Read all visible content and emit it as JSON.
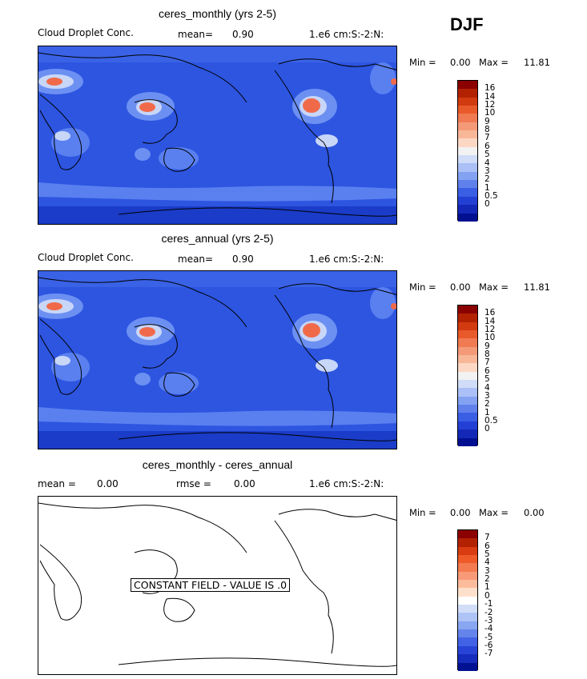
{
  "season": "DJF",
  "panels": [
    {
      "title": "ceres_monthly (yrs 2-5)",
      "variable": "Cloud Droplet Conc.",
      "mean_label": "mean=",
      "mean_value": "0.90",
      "units": "1.e6 cm:S:-2:N:",
      "min_label": "Min =",
      "min_value": "0.00",
      "max_label": "Max =",
      "max_value": "11.81",
      "colorbar_labels": [
        "16",
        "14",
        "12",
        "10",
        "9",
        "8",
        "7",
        "6",
        "5",
        "4",
        "3",
        "2",
        "1",
        "0.5",
        "0"
      ]
    },
    {
      "title": "ceres_annual (yrs 2-5)",
      "variable": "Cloud Droplet Conc.",
      "mean_label": "mean=",
      "mean_value": "0.90",
      "units": "1.e6 cm:S:-2:N:",
      "min_label": "Min =",
      "min_value": "0.00",
      "max_label": "Max =",
      "max_value": "11.81",
      "colorbar_labels": [
        "16",
        "14",
        "12",
        "10",
        "9",
        "8",
        "7",
        "6",
        "5",
        "4",
        "3",
        "2",
        "1",
        "0.5",
        "0"
      ]
    },
    {
      "title": "ceres_monthly - ceres_annual",
      "mean_label": "mean =",
      "mean_value": "0.00",
      "rmse_label": "rmse =",
      "rmse_value": "0.00",
      "units": "1.e6 cm:S:-2:N:",
      "min_label": "Min =",
      "min_value": "0.00",
      "max_label": "Max =",
      "max_value": "0.00",
      "constant_field_text": "CONSTANT FIELD - VALUE IS .0",
      "colorbar_labels": [
        "7",
        "6",
        "5",
        "4",
        "3",
        "2",
        "1",
        "0",
        "-1",
        "-2",
        "-3",
        "-4",
        "-5",
        "-6",
        "-7"
      ]
    }
  ],
  "colors": {
    "ocean": "#2d55e0",
    "ocean_light": "#4f75ee",
    "deep": "#1a3cc8",
    "hot": "#f06a4a",
    "colorbar_top_segments": [
      "#8b0000",
      "#b22200",
      "#d23a10",
      "#e85a2a",
      "#f07a52",
      "#f49a78",
      "#f8b898",
      "#fcd8c4",
      "#f2f2f2",
      "#d0dcf8",
      "#aac0f6",
      "#84a2f2",
      "#6080ec",
      "#3a5ee4",
      "#2440d4",
      "#1428b8",
      "#001090"
    ],
    "colorbar_diff_segments": [
      "#8b0000",
      "#b22200",
      "#d83c10",
      "#ee5a28",
      "#f47a50",
      "#f89a78",
      "#fcbc9c",
      "#fde0cc",
      "#ffffff",
      "#d2def8",
      "#aec4f6",
      "#88a6f2",
      "#6484ec",
      "#4262e6",
      "#2844d6",
      "#162cbc",
      "#001292"
    ]
  }
}
